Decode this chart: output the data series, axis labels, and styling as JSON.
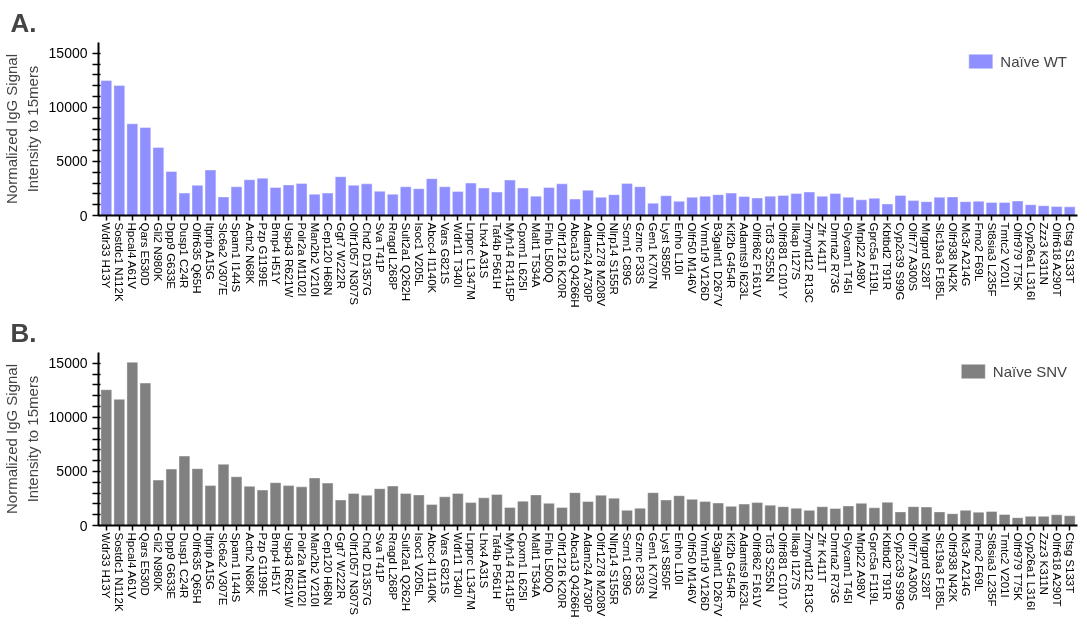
{
  "chart_data": [
    {
      "type": "bar",
      "title": "A.",
      "ylabel": "Normalized IgG Signal\nIntensity to 15mers",
      "categories": [
        "Wdr33 H13Y",
        "Sostdc1 N112K",
        "Hpcal4 A61V",
        "Qars E530D",
        "Gli2 N980K",
        "Dpp9 G633E",
        "Dusp1 C24R",
        "Olfr635 Q65H",
        "Itprip A15G",
        "Slc6a2 V307E",
        "Spam1 I144S",
        "Actn2 N68K",
        "Pzp G1199E",
        "Bmp4 H51Y",
        "Usp43 R621W",
        "Polr2a M1102I",
        "Man2b2 V210I",
        "Cep120 H68N",
        "Ggt7 W222R",
        "Olfr1057 N307S",
        "Chd2 D1357G",
        "Sva T41P",
        "Rragd L268P",
        "Sult2a1 Q262H",
        "Isoc1 V205L",
        "Abcc4 I1140K",
        "Vars G821S",
        "Wdr11 T340I",
        "Lrpprc L1347M",
        "Lhx4 A31S",
        "Taf4b P561H",
        "Myh14 R1415P",
        "Cpxm1 L625I",
        "Malt1 T534A",
        "Flnb L500Q",
        "Olfr1216 K20R",
        "Abca13 Q4266H",
        "Adam24 A730P",
        "Olfr1278 M208V",
        "Nlrp14 S155R",
        "Scrn1 C89G",
        "Gzmc P33S",
        "Gen1 K707N",
        "Lyst S850F",
        "Enho L10I",
        "Olfr50 M146V",
        "Vmn1r9 V126D",
        "B3galnt1 D267V",
        "Kif2b G454R",
        "Adamts9 I623L",
        "Olfr862 F161V",
        "Tcf3 S255N",
        "Olfr881 C101Y",
        "Ilkap I127S",
        "Zmynd12 R13C",
        "Zfr K411T",
        "Dmrta2 R73G",
        "Glycam1 T45I",
        "Mrpl22 A98V",
        "Gprc5a F119L",
        "Kbtbd2 T91R",
        "Cyp2c39 S99G",
        "Olfr77 A300S",
        "Mrgprd S28T",
        "Slc19a3 F185L",
        "Olfr938 N42K",
        "Mc3r A214G",
        "Fmo2 F69L",
        "St8sia3 L235F",
        "Tmtc2 V201I",
        "Olfr979 T75K",
        "Cyp26a1 L316I",
        "Zzz3 K311N",
        "Olfr618 A290T",
        "Ctsg S133T"
      ],
      "series": [
        {
          "name": "Naïve WT",
          "color": "#8f8fff",
          "values": [
            12480,
            12030,
            8480,
            8140,
            6280,
            4070,
            2070,
            2790,
            4210,
            1720,
            2660,
            3310,
            3450,
            2590,
            2830,
            2970,
            1970,
            2070,
            3590,
            2790,
            2930,
            2240,
            1970,
            2660,
            2480,
            3410,
            2660,
            2210,
            3000,
            2550,
            2170,
            3280,
            2550,
            1790,
            2590,
            2930,
            1520,
            2340,
            1690,
            1930,
            2970,
            2660,
            1140,
            1830,
            1310,
            1690,
            1790,
            1930,
            2070,
            1760,
            1620,
            1790,
            1860,
            2030,
            2170,
            1790,
            2030,
            1690,
            1450,
            1590,
            1070,
            1860,
            1380,
            1280,
            1690,
            1720,
            1280,
            1310,
            1210,
            1210,
            1340,
            1000,
            900,
            830,
            800
          ]
        }
      ],
      "ylim": [
        0,
        16000
      ],
      "yticks": [
        0,
        {
          "value": 1000,
          "label": null
        },
        {
          "value": 2000,
          "label": null
        },
        {
          "value": 3000,
          "label": null
        },
        {
          "value": 4000,
          "label": null
        },
        5000,
        {
          "value": 6000,
          "label": null
        },
        {
          "value": 7000,
          "label": null
        },
        {
          "value": 8000,
          "label": null
        },
        {
          "value": 9000,
          "label": null
        },
        10000,
        {
          "value": 11000,
          "label": null
        },
        {
          "value": 12000,
          "label": null
        },
        {
          "value": 13000,
          "label": null
        },
        {
          "value": 14000,
          "label": null
        },
        15000
      ],
      "legend": "top right"
    },
    {
      "type": "bar",
      "title": "B.",
      "ylabel": "Normalized IgG Signal\nIntensity to 15mers",
      "categories": [
        "Wdr33 H13Y",
        "Sostdc1 N112K",
        "Hpcal4 A61V",
        "Qars E530D",
        "Gli2 N980K",
        "Dpp9 G633E",
        "Dusp1 C24R",
        "Olfr635 Q65H",
        "Itprip A15G",
        "Slc6a2 V307E",
        "Spam1 I144S",
        "Actn2 N68K",
        "Pzp G1199E",
        "Bmp4 H51Y",
        "Usp43 R621W",
        "Polr2a M1102I",
        "Man2b2 V210I",
        "Cep120 H68N",
        "Ggt7 W222R",
        "Olfr1057 N307S",
        "Chd2 D1357G",
        "Sva T41P",
        "Rragd L268P",
        "Sult2a1 Q262H",
        "Isoc1 V205L",
        "Abcc4 I1140K",
        "Vars G821S",
        "Wdr11 T340I",
        "Lrpprc L1347M",
        "Lhx4 A31S",
        "Taf4b P561H",
        "Myh14 R1415P",
        "Cpxm1 L625I",
        "Malt1 T534A",
        "Flnb L500Q",
        "Olfr1216 K20R",
        "Abca13 Q4266H",
        "Adam24 A730P",
        "Olfr1278 M208V",
        "Nlrp14 S155R",
        "Scrn1 C89G",
        "Gzmc P33S",
        "Gen1 K707N",
        "Lyst S850F",
        "Enho L10I",
        "Olfr50 M146V",
        "Vmn1r9 V126D",
        "B3galnt1 D267V",
        "Kif2b G454R",
        "Adamts9 I623L",
        "Olfr862 F161V",
        "Tcf3 S255N",
        "Olfr881 C101Y",
        "Ilkap I127S",
        "Zmynd12 R13C",
        "Zfr K411T",
        "Dmrta2 R73G",
        "Glycam1 T45I",
        "Mrpl22 A98V",
        "Gprc5a F119L",
        "Kbtbd2 T91R",
        "Cyp2c39 S99G",
        "Olfr77 A300S",
        "Mrgprd S28T",
        "Slc19a3 F185L",
        "Olfr938 N42K",
        "Mc3r A214G",
        "Fmo2 F69L",
        "St8sia3 L235F",
        "Tmtc2 V201I",
        "Olfr979 T75K",
        "Cyp26a1 L316I",
        "Zzz3 K311N",
        "Olfr618 A290T",
        "Ctsg S133T"
      ],
      "series": [
        {
          "name": "Naïve SNV",
          "color": "#808080",
          "values": [
            12560,
            11670,
            15100,
            13170,
            4200,
            5220,
            6420,
            5260,
            3690,
            5670,
            4510,
            3620,
            3280,
            3960,
            3690,
            3580,
            4400,
            3920,
            2360,
            2970,
            2800,
            3410,
            3650,
            2970,
            2830,
            1950,
            2660,
            2970,
            2120,
            2560,
            2870,
            1670,
            2250,
            2830,
            2050,
            1670,
            3040,
            2220,
            2800,
            2530,
            1400,
            1600,
            3040,
            2360,
            2760,
            2420,
            2220,
            2080,
            1770,
            1980,
            2120,
            1880,
            1740,
            1600,
            1400,
            1740,
            1570,
            1810,
            2050,
            1640,
            2150,
            1260,
            1740,
            1710,
            1260,
            1090,
            1400,
            1230,
            1300,
            1020,
            720,
            850,
            850,
            990,
            900
          ]
        }
      ],
      "ylim": [
        0,
        16000
      ],
      "yticks": [
        0,
        {
          "value": 1000,
          "label": null
        },
        {
          "value": 2000,
          "label": null
        },
        {
          "value": 3000,
          "label": null
        },
        {
          "value": 4000,
          "label": null
        },
        5000,
        {
          "value": 6000,
          "label": null
        },
        {
          "value": 7000,
          "label": null
        },
        {
          "value": 8000,
          "label": null
        },
        {
          "value": 9000,
          "label": null
        },
        10000,
        {
          "value": 11000,
          "label": null
        },
        {
          "value": 12000,
          "label": null
        },
        {
          "value": 13000,
          "label": null
        },
        {
          "value": 14000,
          "label": null
        },
        15000
      ],
      "legend": "top right"
    }
  ]
}
